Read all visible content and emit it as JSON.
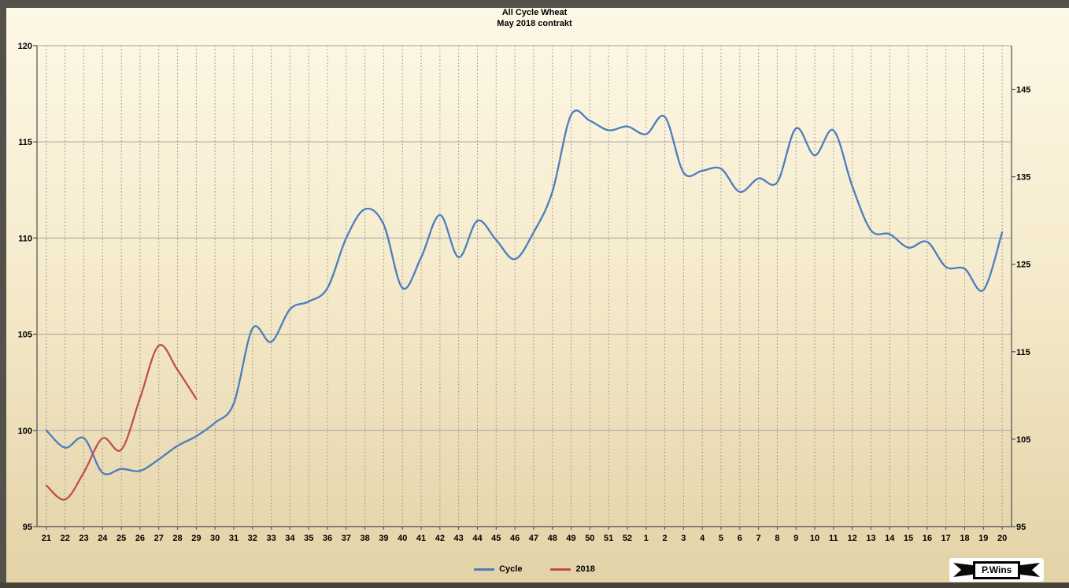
{
  "title": {
    "line1": "All Cycle Wheat",
    "line2": "May 2018 contrakt"
  },
  "logo": {
    "text": "P.Wins"
  },
  "colors": {
    "background_top": "#fdf8e7",
    "background_bottom": "#e3d2a6",
    "grid_horizontal": "#a3a3a3",
    "grid_vertical": "#8c8c8c",
    "axis": "#4d4d4d",
    "text": "#000000",
    "cycle_line": "#4a7ebf",
    "line_2018": "#c0504d",
    "edge": "#53514a"
  },
  "chart_data": {
    "type": "line",
    "title": "All Cycle Wheat",
    "subtitle": "May 2018 contrakt",
    "xlabel": "",
    "ylabel": "",
    "legend_position": "bottom",
    "grid": {
      "horizontal": "solid",
      "vertical": "dashed"
    },
    "categories": [
      "21",
      "22",
      "23",
      "24",
      "25",
      "26",
      "27",
      "28",
      "29",
      "30",
      "31",
      "32",
      "33",
      "34",
      "35",
      "36",
      "37",
      "38",
      "39",
      "40",
      "41",
      "42",
      "43",
      "44",
      "45",
      "46",
      "47",
      "48",
      "49",
      "50",
      "51",
      "52",
      "1",
      "2",
      "3",
      "4",
      "5",
      "6",
      "7",
      "8",
      "9",
      "10",
      "11",
      "12",
      "13",
      "14",
      "15",
      "16",
      "17",
      "18",
      "19",
      "20"
    ],
    "left_axis": {
      "min": 95,
      "max": 120,
      "ticks": [
        95,
        100,
        105,
        110,
        115,
        120
      ]
    },
    "right_axis": {
      "min": 95,
      "max": 150,
      "ticks": [
        95,
        105,
        115,
        125,
        135,
        145
      ]
    },
    "series": [
      {
        "name": "Cycle",
        "axis": "left",
        "color": "#4a7ebf",
        "values": [
          100.0,
          99.1,
          99.6,
          97.8,
          98.0,
          97.9,
          98.5,
          99.2,
          99.7,
          100.4,
          101.4,
          105.3,
          104.6,
          106.3,
          106.7,
          107.4,
          110.0,
          111.5,
          110.7,
          107.4,
          109.0,
          111.2,
          109.0,
          110.9,
          109.9,
          108.9,
          110.3,
          112.4,
          116.4,
          116.1,
          115.6,
          115.8,
          115.4,
          116.3,
          113.4,
          113.5,
          113.6,
          112.4,
          113.1,
          112.9,
          115.7,
          114.3,
          115.6,
          112.7,
          110.4,
          110.2,
          109.5,
          109.8,
          108.5,
          108.4,
          107.3,
          110.3
        ]
      },
      {
        "name": "2018",
        "axis": "right",
        "color": "#c0504d",
        "values": [
          99.7,
          98.1,
          101.2,
          105.1,
          103.8,
          109.7,
          115.7,
          112.9,
          109.6
        ]
      }
    ]
  }
}
